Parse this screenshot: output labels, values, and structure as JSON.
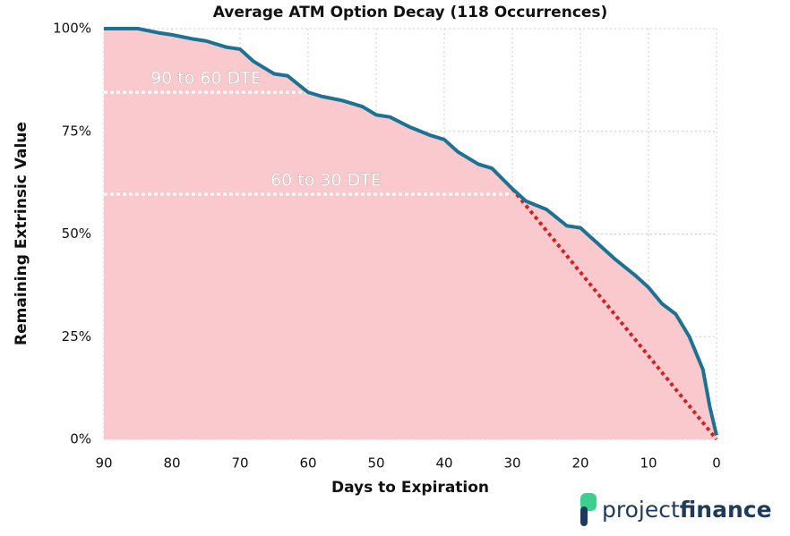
{
  "chart_data": {
    "type": "line",
    "title": "Average ATM Option Decay (118 Occurrences)",
    "x_label": "Days to Expiration",
    "y_label": "Remaining Extrinsic Value",
    "x": [
      90,
      85,
      82,
      80,
      77,
      75,
      72,
      70,
      68,
      65,
      63,
      60,
      58,
      55,
      52,
      50,
      48,
      45,
      42,
      40,
      38,
      35,
      33,
      30,
      28,
      25,
      22,
      20,
      18,
      15,
      12,
      10,
      8,
      6,
      4,
      2,
      1,
      0
    ],
    "values": [
      100,
      100,
      99,
      98.5,
      97.5,
      97,
      95.5,
      95,
      92,
      89,
      88.5,
      84.5,
      83.5,
      82.5,
      81,
      79,
      78.5,
      76,
      74,
      73,
      70,
      67,
      66,
      61,
      58,
      56,
      52,
      51.5,
      48.5,
      44,
      40,
      37,
      33,
      30.5,
      25,
      17,
      8,
      1
    ],
    "color": "#1b7393",
    "fill_color": "#f9c9cd",
    "xlim": [
      90,
      0
    ],
    "ylim": [
      0,
      100
    ],
    "xticks": [
      90,
      80,
      70,
      60,
      50,
      40,
      30,
      20,
      10,
      0
    ],
    "yticks": [
      {
        "value": 0,
        "label": "0%"
      },
      {
        "value": 25,
        "label": "25%"
      },
      {
        "value": 50,
        "label": "50%"
      },
      {
        "value": 75,
        "label": "75%"
      },
      {
        "value": 100,
        "label": "100%"
      }
    ],
    "grid": true,
    "annotations": [
      {
        "text": "90 to 60 DTE",
        "x": [
          90,
          60
        ],
        "y": 84.5
      },
      {
        "text": "60 to 30 DTE",
        "x": [
          90,
          30
        ],
        "y": 59.7
      }
    ],
    "trend_line": {
      "x": [
        30,
        0
      ],
      "y": [
        61,
        0
      ],
      "color": "#d42020"
    }
  },
  "logo": {
    "prefix": "project",
    "suffix": "finance"
  }
}
